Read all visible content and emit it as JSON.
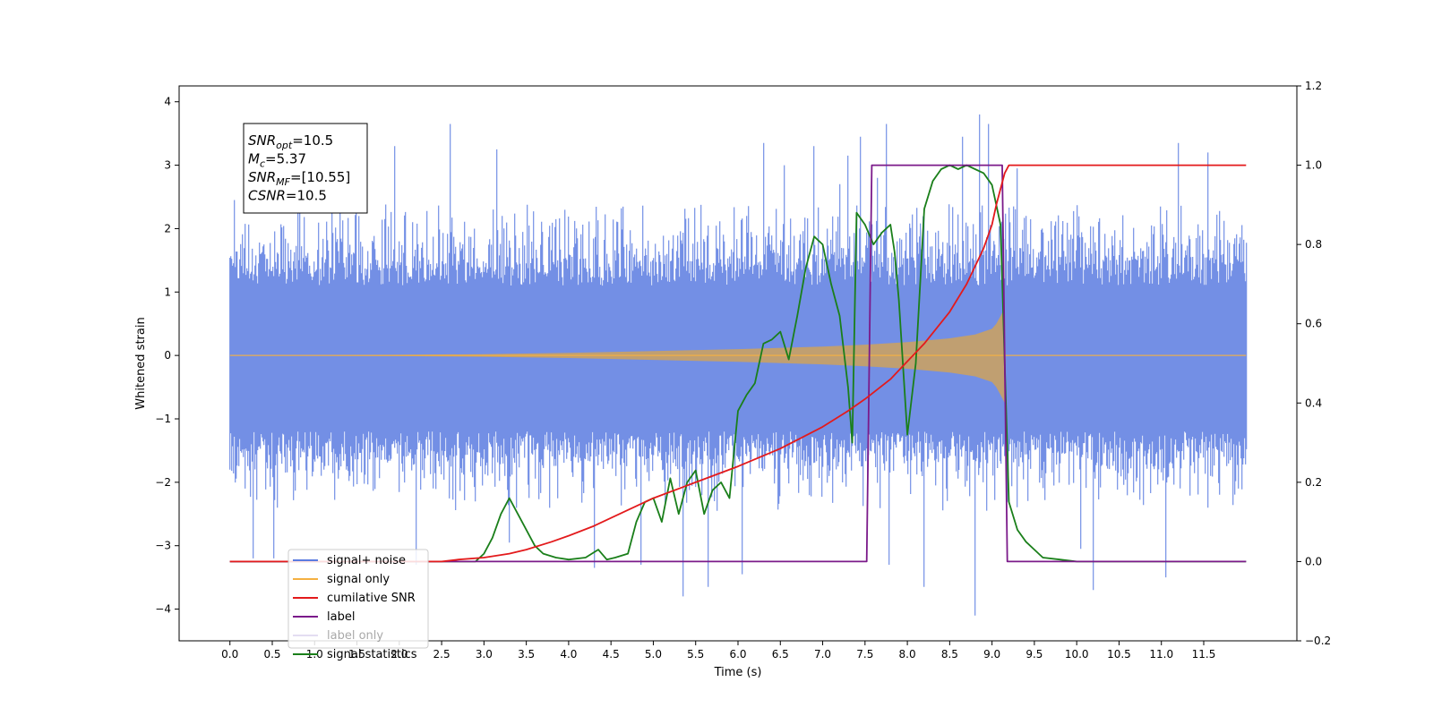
{
  "chart_data": {
    "type": "line",
    "xlabel": "Time (s)",
    "ylabel": "Whitened strain",
    "xlim": [
      -0.6,
      12.6
    ],
    "ylim": [
      -4.5,
      4.25
    ],
    "y2lim": [
      -0.2,
      1.2
    ],
    "x_ticks": [
      0.0,
      0.5,
      1.0,
      1.5,
      2.0,
      2.5,
      3.0,
      3.5,
      4.0,
      4.5,
      5.0,
      5.5,
      6.0,
      6.5,
      7.0,
      7.5,
      8.0,
      8.5,
      9.0,
      9.5,
      10.0,
      10.5,
      11.0,
      11.5
    ],
    "x_tick_labels": [
      "0.0",
      "0.5",
      "1.0",
      "1.5",
      "2.0",
      "2.5",
      "3.0",
      "3.5",
      "4.0",
      "4.5",
      "5.0",
      "5.5",
      "6.0",
      "6.5",
      "7.0",
      "7.5",
      "8.0",
      "8.5",
      "9.0",
      "9.5",
      "10.0",
      "10.5",
      "11.0",
      "11.5"
    ],
    "y_ticks": [
      -4,
      -3,
      -2,
      -1,
      0,
      1,
      2,
      3,
      4
    ],
    "y_tick_labels": [
      "−4",
      "−3",
      "−2",
      "−1",
      "0",
      "1",
      "2",
      "3",
      "4"
    ],
    "y2_ticks": [
      -0.2,
      0.0,
      0.2,
      0.4,
      0.6,
      0.8,
      1.0,
      1.2
    ],
    "y2_tick_labels": [
      "−0.2",
      "0.0",
      "0.2",
      "0.4",
      "0.6",
      "0.8",
      "1.0",
      "1.2"
    ],
    "grid": false,
    "legend_position": "bottom-left",
    "annotation": {
      "lines": [
        {
          "base": "SNR",
          "sub": "opt",
          "value": "=10.5"
        },
        {
          "base": "M",
          "sub": "c",
          "value": "=5.37"
        },
        {
          "base": "SNR",
          "sub": "MF",
          "value": "=[10.55]"
        },
        {
          "base": "CSNR",
          "sub": "",
          "value": "=10.5"
        }
      ]
    },
    "series": [
      {
        "name": "signal+ noise",
        "axis": "left",
        "color": "#5b7be0",
        "style": "noise",
        "x_range": [
          0.0,
          12.0
        ],
        "sigma": 1.0,
        "peaks": [
          [
            0.05,
            2.45
          ],
          [
            0.18,
            -2.1
          ],
          [
            0.28,
            -3.2
          ],
          [
            0.52,
            -3.2
          ],
          [
            0.82,
            2.7
          ],
          [
            1.3,
            2.6
          ],
          [
            1.95,
            3.3
          ],
          [
            2.2,
            -3.3
          ],
          [
            2.6,
            3.65
          ],
          [
            3.15,
            3.25
          ],
          [
            3.3,
            -2.95
          ],
          [
            4.3,
            -3.35
          ],
          [
            4.85,
            -3.3
          ],
          [
            5.35,
            -3.8
          ],
          [
            5.65,
            -3.65
          ],
          [
            6.05,
            -3.45
          ],
          [
            6.3,
            3.35
          ],
          [
            6.55,
            3.0
          ],
          [
            6.9,
            3.3
          ],
          [
            7.2,
            2.7
          ],
          [
            7.3,
            3.15
          ],
          [
            7.45,
            3.45
          ],
          [
            7.65,
            2.8
          ],
          [
            7.75,
            3.65
          ],
          [
            7.78,
            -3.3
          ],
          [
            8.2,
            -3.65
          ],
          [
            8.65,
            3.45
          ],
          [
            8.8,
            -4.1
          ],
          [
            8.85,
            3.8
          ],
          [
            8.96,
            3.65
          ],
          [
            9.3,
            2.95
          ],
          [
            10.05,
            -3.05
          ],
          [
            10.2,
            -3.7
          ],
          [
            11.05,
            -3.5
          ],
          [
            11.2,
            3.35
          ],
          [
            11.55,
            3.2
          ]
        ]
      },
      {
        "name": "signal only",
        "axis": "left",
        "color": "#f5b041",
        "style": "chirp",
        "x": [
          0.0,
          2.0,
          3.0,
          4.0,
          5.0,
          6.0,
          7.0,
          7.5,
          8.0,
          8.5,
          8.8,
          9.0,
          9.05,
          9.1,
          9.15,
          9.16,
          12.0
        ],
        "envelope": [
          0.0,
          0.01,
          0.02,
          0.04,
          0.07,
          0.1,
          0.14,
          0.17,
          0.21,
          0.27,
          0.33,
          0.42,
          0.5,
          0.62,
          0.75,
          0.0,
          0.0
        ]
      },
      {
        "name": "cumilative SNR",
        "axis": "right",
        "color": "#e31a1c",
        "x": [
          0.0,
          2.5,
          2.7,
          3.0,
          3.3,
          3.5,
          3.8,
          4.0,
          4.3,
          4.5,
          5.0,
          5.5,
          6.0,
          6.5,
          7.0,
          7.3,
          7.5,
          7.8,
          8.0,
          8.2,
          8.5,
          8.7,
          8.9,
          9.0,
          9.05,
          9.1,
          9.15,
          9.2,
          12.0
        ],
        "values": [
          0.0,
          0.0,
          0.005,
          0.01,
          0.02,
          0.03,
          0.05,
          0.065,
          0.09,
          0.11,
          0.16,
          0.2,
          0.24,
          0.285,
          0.34,
          0.38,
          0.41,
          0.46,
          0.505,
          0.55,
          0.63,
          0.7,
          0.79,
          0.85,
          0.9,
          0.94,
          0.98,
          1.0,
          1.0
        ]
      },
      {
        "name": "label",
        "axis": "right",
        "color": "#7b1a8a",
        "x": [
          0.0,
          7.52,
          7.58,
          9.12,
          9.18,
          12.0
        ],
        "values": [
          0.0,
          0.0,
          1.0,
          1.0,
          0.0,
          0.0
        ]
      },
      {
        "name": "label only",
        "axis": "right",
        "color": "#b39ddb",
        "hidden": true,
        "x": [],
        "values": []
      },
      {
        "name": "signal statistics",
        "axis": "right",
        "color": "#1a7f1a",
        "x": [
          0.0,
          2.8,
          2.9,
          3.0,
          3.1,
          3.2,
          3.3,
          3.45,
          3.6,
          3.7,
          3.85,
          4.0,
          4.2,
          4.35,
          4.45,
          4.55,
          4.7,
          4.8,
          4.9,
          5.0,
          5.1,
          5.2,
          5.3,
          5.4,
          5.5,
          5.6,
          5.7,
          5.8,
          5.9,
          6.0,
          6.1,
          6.2,
          6.3,
          6.4,
          6.5,
          6.6,
          6.7,
          6.8,
          6.9,
          7.0,
          7.1,
          7.2,
          7.3,
          7.35,
          7.4,
          7.5,
          7.6,
          7.7,
          7.8,
          7.85,
          7.9,
          8.0,
          8.1,
          8.2,
          8.3,
          8.4,
          8.5,
          8.6,
          8.7,
          8.8,
          8.9,
          9.0,
          9.1,
          9.2,
          9.3,
          9.4,
          9.5,
          9.6,
          9.8,
          10.0,
          11.0,
          12.0
        ],
        "values": [
          0.0,
          0.0,
          0.0,
          0.02,
          0.06,
          0.12,
          0.16,
          0.1,
          0.04,
          0.02,
          0.01,
          0.005,
          0.01,
          0.03,
          0.005,
          0.01,
          0.02,
          0.1,
          0.15,
          0.16,
          0.1,
          0.21,
          0.12,
          0.2,
          0.23,
          0.12,
          0.18,
          0.2,
          0.16,
          0.38,
          0.42,
          0.45,
          0.55,
          0.56,
          0.58,
          0.51,
          0.62,
          0.74,
          0.82,
          0.8,
          0.7,
          0.62,
          0.44,
          0.3,
          0.88,
          0.85,
          0.8,
          0.83,
          0.85,
          0.78,
          0.66,
          0.32,
          0.5,
          0.89,
          0.96,
          0.99,
          1.0,
          0.99,
          1.0,
          0.99,
          0.98,
          0.95,
          0.85,
          0.15,
          0.08,
          0.05,
          0.03,
          0.01,
          0.005,
          0.0,
          0.0,
          0.0
        ]
      }
    ]
  }
}
